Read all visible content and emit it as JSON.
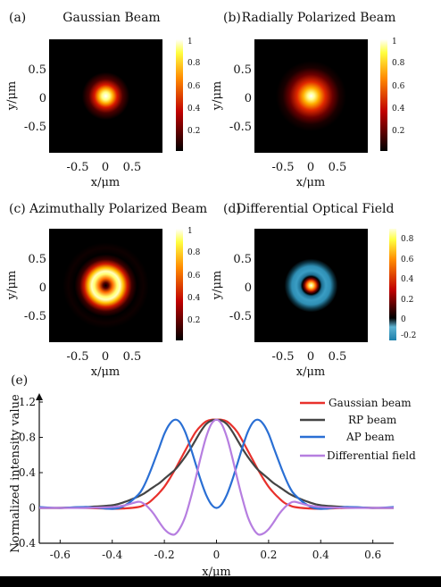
{
  "chart_data": [
    {
      "type": "heatmap",
      "panel_label": "(a)",
      "title": "Gaussian Beam",
      "xlabel": "x/μm",
      "ylabel": "y/μm",
      "x_ticks": [
        "-0.5",
        "0",
        "0.5"
      ],
      "y_ticks": [
        "0.5",
        "0",
        "-0.5"
      ],
      "colorbar_ticks": [
        "1",
        "0.8",
        "0.6",
        "0.4",
        "0.2"
      ],
      "colormap": "hot",
      "profile": "gaussian",
      "colors": {
        "background": "#000000",
        "peak": "#ffffff"
      }
    },
    {
      "type": "heatmap",
      "panel_label": "(b)",
      "title": "Radially Polarized Beam",
      "xlabel": "x/μm",
      "ylabel": "y/μm",
      "x_ticks": [
        "-0.5",
        "0",
        "0.5"
      ],
      "y_ticks": [
        "0.5",
        "0",
        "-0.5"
      ],
      "colorbar_ticks": [
        "1",
        "0.8",
        "0.6",
        "0.4",
        "0.2"
      ],
      "colormap": "hot",
      "profile": "wide-spot"
    },
    {
      "type": "heatmap",
      "panel_label": "(c)",
      "title": "Azimuthally Polarized Beam",
      "xlabel": "x/μm",
      "ylabel": "y/μm",
      "x_ticks": [
        "-0.5",
        "0",
        "0.5"
      ],
      "y_ticks": [
        "0.5",
        "0",
        "-0.5"
      ],
      "colorbar_ticks": [
        "1",
        "0.8",
        "0.6",
        "0.4",
        "0.2"
      ],
      "colormap": "hot",
      "profile": "donut"
    },
    {
      "type": "heatmap",
      "panel_label": "(d)",
      "title": "Differential Optical Field",
      "xlabel": "x/μm",
      "ylabel": "y/μm",
      "x_ticks": [
        "-0.5",
        "0",
        "0.5"
      ],
      "y_ticks": [
        "0.5",
        "0",
        "-0.5"
      ],
      "colorbar_ticks": [
        "0.8",
        "0.6",
        "0.4",
        "0.2",
        "0",
        "-0.2"
      ],
      "colormap": "hot-with-blue-negative",
      "profile": "differential",
      "colors": {
        "negative": "#2f8fb5"
      }
    },
    {
      "type": "line",
      "panel_label": "(e)",
      "xlabel": "x/μm",
      "ylabel": "Normalized intensity value",
      "xlim": [
        -0.68,
        0.68
      ],
      "ylim": [
        -0.4,
        1.2
      ],
      "x_ticks": [
        -0.6,
        -0.4,
        -0.2,
        0,
        0.2,
        0.4,
        0.6
      ],
      "x_tick_labels": [
        "-0.6",
        "-0.4",
        "-0.2",
        "0",
        "0.2",
        "0.4",
        "0.6"
      ],
      "y_ticks": [
        -0.4,
        0,
        0.4,
        0.8,
        1.2
      ],
      "y_tick_labels": [
        "-0.4",
        "0",
        "0.4",
        "0.8",
        "1.2"
      ],
      "legend_position": "top-right",
      "x": [
        -0.68,
        -0.6,
        -0.5,
        -0.4,
        -0.35,
        -0.3,
        -0.28,
        -0.26,
        -0.24,
        -0.22,
        -0.2,
        -0.18,
        -0.16,
        -0.14,
        -0.12,
        -0.1,
        -0.08,
        -0.06,
        -0.04,
        -0.02,
        0,
        0.02,
        0.04,
        0.06,
        0.08,
        0.1,
        0.12,
        0.14,
        0.16,
        0.18,
        0.2,
        0.22,
        0.24,
        0.26,
        0.28,
        0.3,
        0.35,
        0.4,
        0.5,
        0.6,
        0.68
      ],
      "series": [
        {
          "name": "Gaussian beam",
          "color": "#e8312c",
          "values": [
            0,
            0,
            0,
            -0.01,
            -0.005,
            0.01,
            0.03,
            0.06,
            0.11,
            0.17,
            0.24,
            0.33,
            0.43,
            0.54,
            0.65,
            0.76,
            0.86,
            0.93,
            0.98,
            1.0,
            1.0,
            1.0,
            0.98,
            0.93,
            0.86,
            0.76,
            0.65,
            0.54,
            0.43,
            0.33,
            0.24,
            0.17,
            0.11,
            0.06,
            0.03,
            0.01,
            -0.005,
            -0.01,
            0,
            0,
            0
          ]
        },
        {
          "name": "RP beam",
          "color": "#444444",
          "values": [
            0,
            0,
            0.01,
            0.03,
            0.07,
            0.13,
            0.16,
            0.2,
            0.24,
            0.28,
            0.33,
            0.38,
            0.43,
            0.5,
            0.58,
            0.67,
            0.77,
            0.87,
            0.95,
            0.99,
            1.0,
            0.99,
            0.95,
            0.87,
            0.77,
            0.67,
            0.58,
            0.5,
            0.43,
            0.38,
            0.33,
            0.28,
            0.24,
            0.2,
            0.16,
            0.13,
            0.07,
            0.03,
            0.01,
            0,
            0
          ]
        },
        {
          "name": "AP beam",
          "color": "#2a6fd4",
          "values": [
            0.01,
            0,
            0.01,
            -0.01,
            0.03,
            0.15,
            0.24,
            0.37,
            0.52,
            0.68,
            0.84,
            0.95,
            1.0,
            0.97,
            0.86,
            0.69,
            0.5,
            0.31,
            0.15,
            0.04,
            0,
            0.04,
            0.15,
            0.31,
            0.5,
            0.69,
            0.86,
            0.97,
            1.0,
            0.95,
            0.84,
            0.68,
            0.52,
            0.37,
            0.24,
            0.15,
            0.03,
            -0.01,
            0.01,
            0,
            0.01
          ]
        },
        {
          "name": "Differential field",
          "color": "#b67ee0",
          "values": [
            0,
            0,
            0,
            0.01,
            0.03,
            0.07,
            0.05,
            0.0,
            -0.07,
            -0.16,
            -0.24,
            -0.29,
            -0.3,
            -0.23,
            -0.1,
            0.1,
            0.33,
            0.58,
            0.8,
            0.95,
            1.0,
            0.95,
            0.8,
            0.58,
            0.33,
            0.1,
            -0.1,
            -0.23,
            -0.3,
            -0.29,
            -0.24,
            -0.16,
            -0.07,
            0.0,
            0.05,
            0.07,
            0.03,
            0.01,
            0,
            0,
            0
          ]
        }
      ]
    }
  ]
}
